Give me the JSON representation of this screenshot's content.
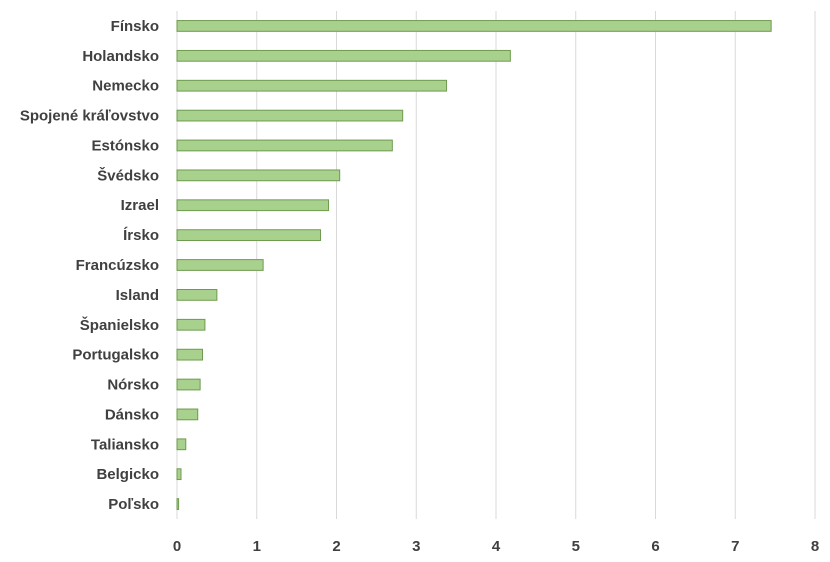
{
  "chart_data": {
    "type": "bar",
    "orientation": "horizontal",
    "categories": [
      "Fínsko",
      "Holandsko",
      "Nemecko",
      "Spojené kráľovstvo",
      "Estónsko",
      "Švédsko",
      "Izrael",
      "Írsko",
      "Francúzsko",
      "Island",
      "Španielsko",
      "Portugalsko",
      "Nórsko",
      "Dánsko",
      "Taliansko",
      "Belgicko",
      "Poľsko"
    ],
    "values": [
      7.45,
      4.18,
      3.38,
      2.83,
      2.7,
      2.04,
      1.9,
      1.8,
      1.08,
      0.5,
      0.35,
      0.32,
      0.29,
      0.26,
      0.11,
      0.05,
      0.02
    ],
    "title": "",
    "xlabel": "",
    "ylabel": "",
    "xlim": [
      0,
      8
    ],
    "xticks": [
      "0",
      "1",
      "2",
      "3",
      "4",
      "5",
      "6",
      "7",
      "8"
    ],
    "grid": "vertical",
    "legend": "none",
    "colors": {
      "bar_fill": "#a9d18e",
      "bar_stroke": "#6f9a4f",
      "grid": "#d9d9d9",
      "text": "#404040"
    }
  }
}
